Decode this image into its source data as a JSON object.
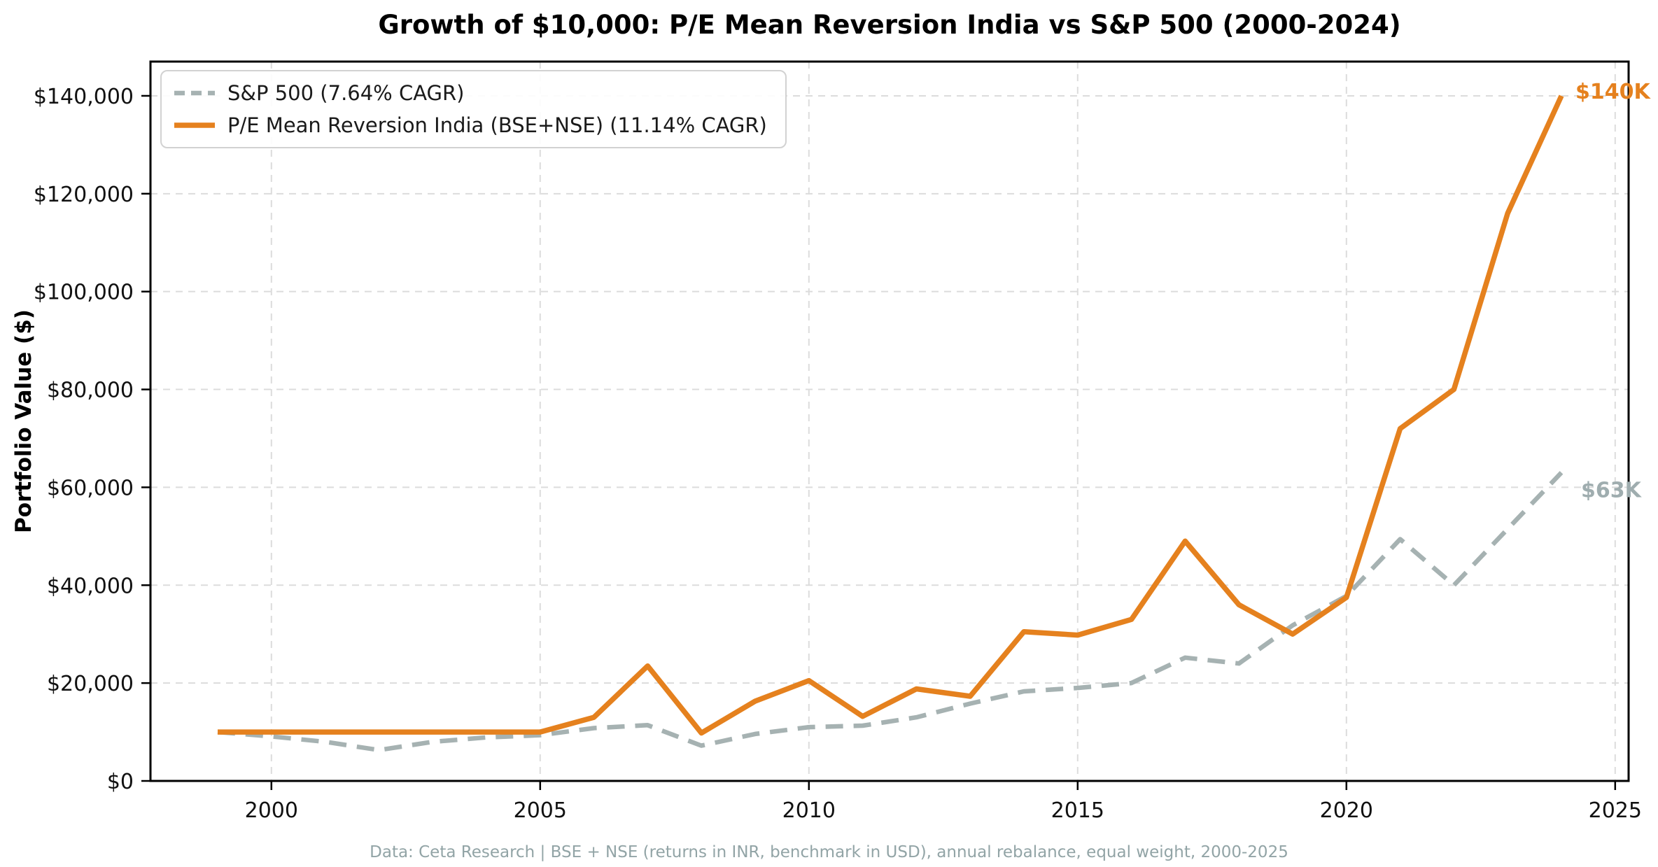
{
  "page": {
    "title": "Growth of $10,000: P/E Mean Reversion India vs S&P 500 (2000-2024)",
    "footer": "Data: Ceta Research | BSE + NSE (returns in INR, benchmark in USD), annual rebalance, equal weight, 2000-2025"
  },
  "chart_data": {
    "type": "line",
    "title": "Growth of $10,000: P/E Mean Reversion India vs S&P 500 (2000-2024)",
    "xlabel": "",
    "ylabel": "Portfolio Value ($)",
    "grid": true,
    "legend_position": "top-left",
    "xlim": [
      1997.75,
      2025.25
    ],
    "ylim": [
      0,
      147000
    ],
    "x": [
      1999,
      2000,
      2001,
      2002,
      2003,
      2004,
      2005,
      2006,
      2007,
      2008,
      2009,
      2010,
      2011,
      2012,
      2013,
      2014,
      2015,
      2016,
      2017,
      2018,
      2019,
      2020,
      2021,
      2022,
      2023,
      2024
    ],
    "series": [
      {
        "id": "sp500",
        "name": "S&P 500 (7.64% CAGR)",
        "color": "#a6b2b2",
        "style": "dashed",
        "values": [
          10000,
          9100,
          8000,
          6300,
          8000,
          8900,
          9350,
          10800,
          11400,
          7200,
          9600,
          11000,
          11300,
          13000,
          15800,
          18300,
          19000,
          20000,
          25200,
          24000,
          31800,
          37800,
          49400,
          40000,
          51500,
          63000
        ]
      },
      {
        "id": "pe-india",
        "name": "P/E Mean Reversion India (BSE+NSE) (11.14% CAGR)",
        "color": "#e5811e",
        "style": "solid",
        "values": [
          10000,
          10000,
          10000,
          10000,
          10000,
          10000,
          10000,
          13000,
          23500,
          9800,
          16300,
          20500,
          13200,
          18800,
          17300,
          30500,
          29800,
          33000,
          49000,
          36000,
          30000,
          37500,
          72000,
          80000,
          116000,
          140000
        ]
      }
    ],
    "xticks": [
      {
        "v": 2000,
        "label": "2000"
      },
      {
        "v": 2005,
        "label": "2005"
      },
      {
        "v": 2010,
        "label": "2010"
      },
      {
        "v": 2015,
        "label": "2015"
      },
      {
        "v": 2020,
        "label": "2020"
      },
      {
        "v": 2025,
        "label": "2025"
      }
    ],
    "yticks": [
      {
        "v": 0,
        "label": "$0"
      },
      {
        "v": 20000,
        "label": "$20,000"
      },
      {
        "v": 40000,
        "label": "$40,000"
      },
      {
        "v": 60000,
        "label": "$60,000"
      },
      {
        "v": 80000,
        "label": "$80,000"
      },
      {
        "v": 100000,
        "label": "$100,000"
      },
      {
        "v": 120000,
        "label": "$120,000"
      },
      {
        "v": 140000,
        "label": "$140,000"
      }
    ],
    "annotations": [
      {
        "id": "140k",
        "text": "$140K",
        "x": 2024,
        "value": 140000,
        "color": "#e5811e"
      },
      {
        "id": "63k",
        "text": "$63K",
        "x": 2024,
        "value": 63000,
        "color": "#9fadaf"
      }
    ]
  }
}
